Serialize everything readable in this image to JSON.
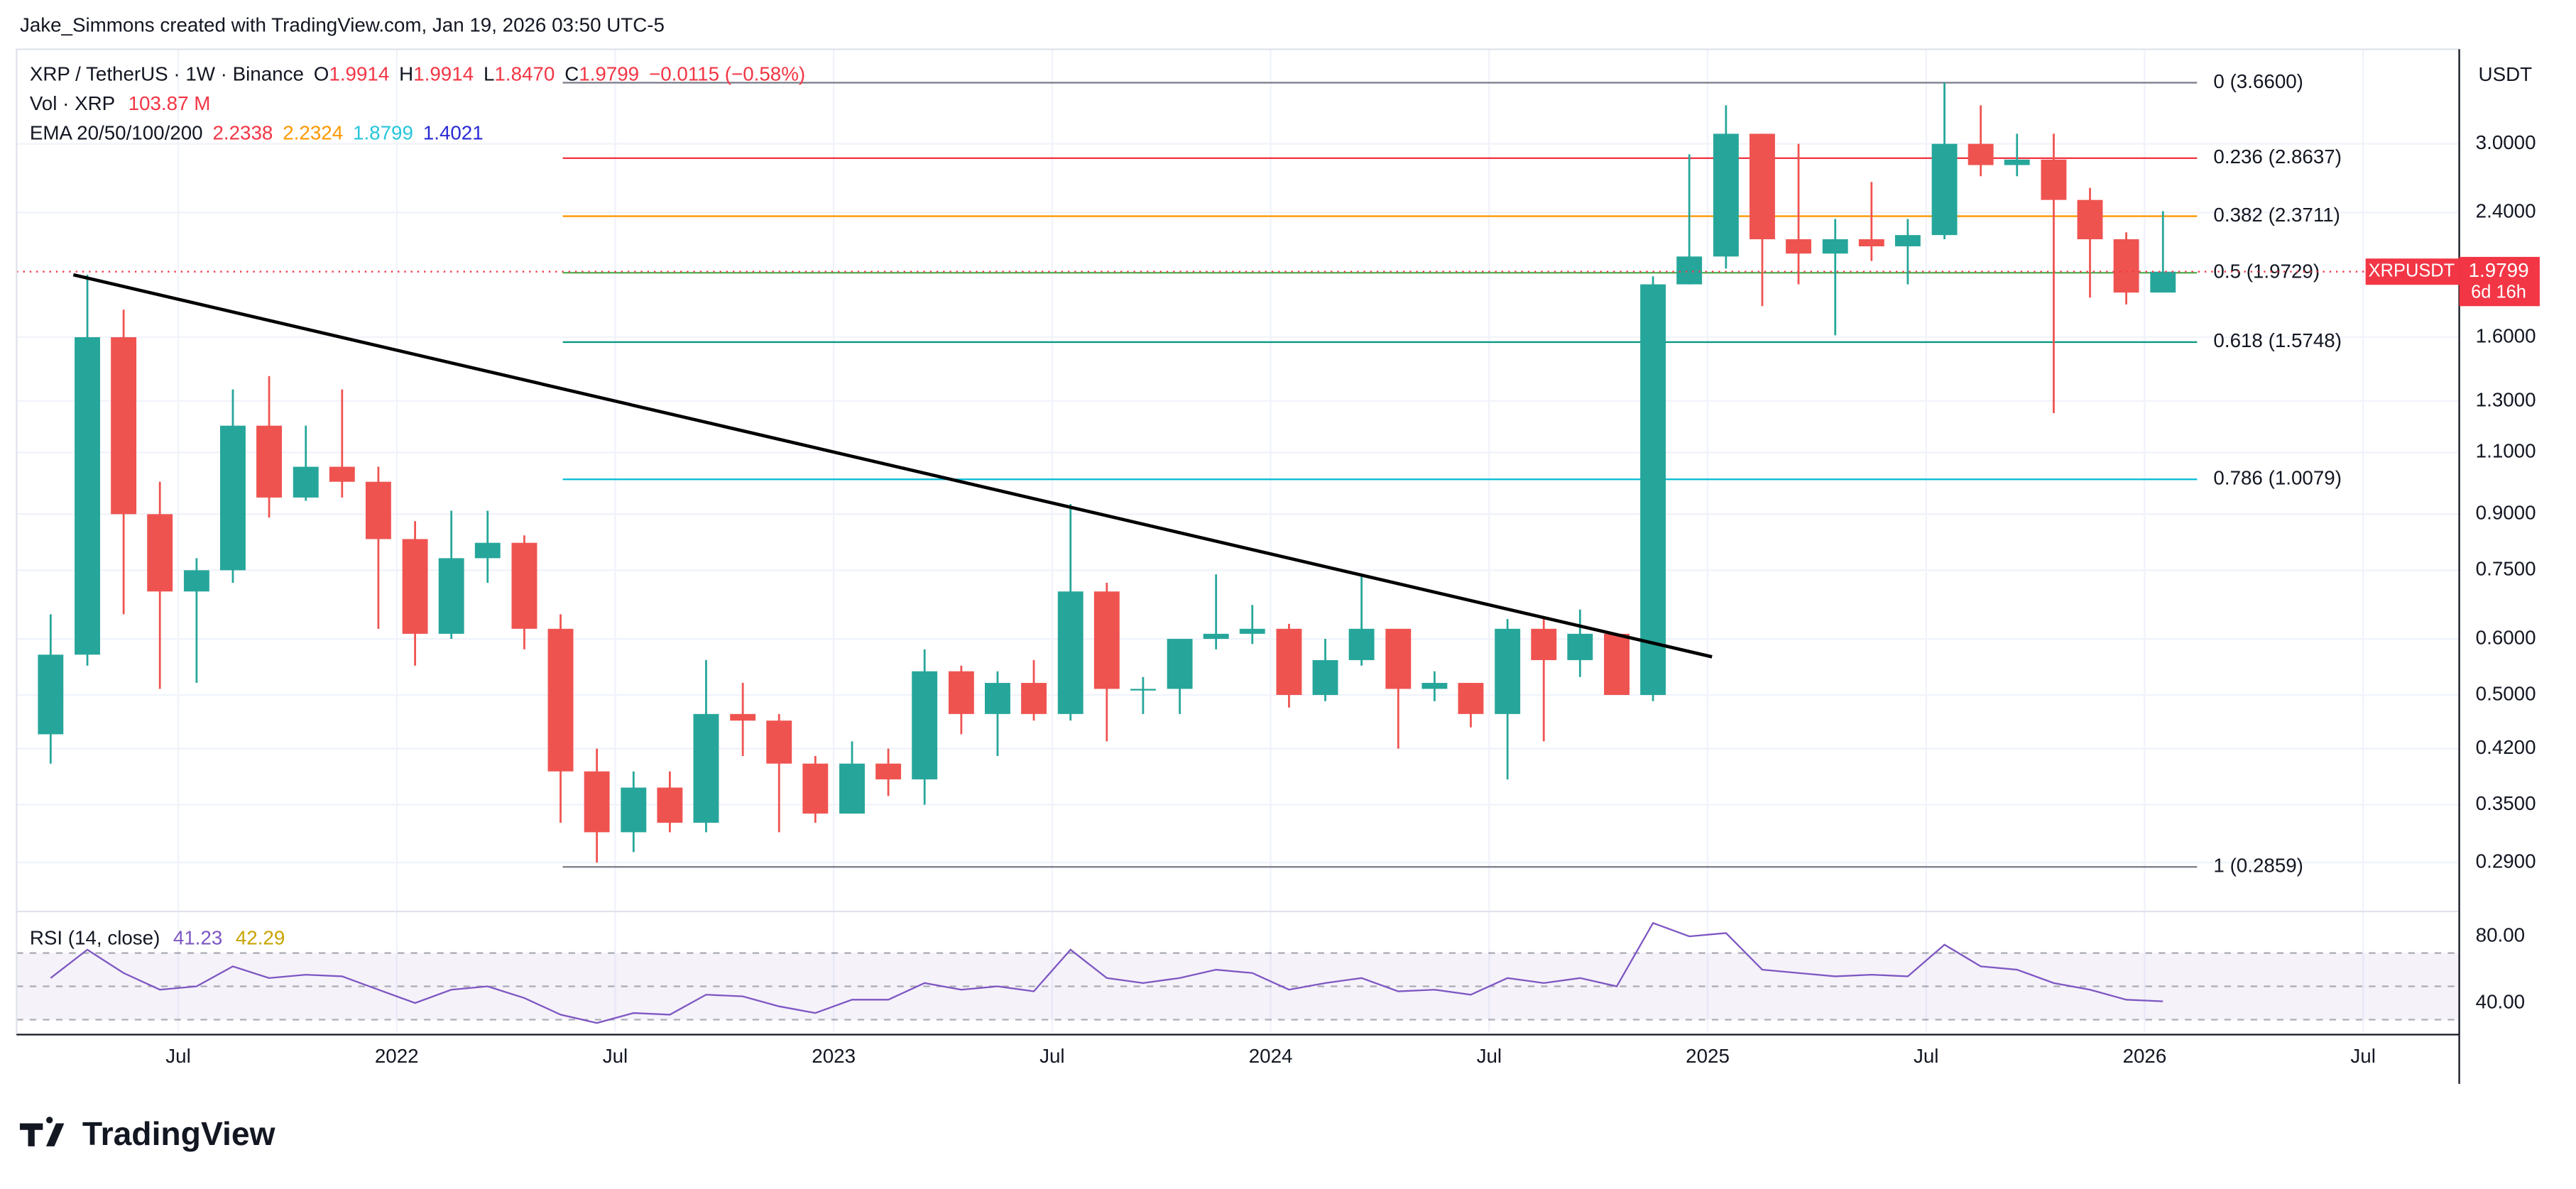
{
  "header": {
    "attribution": "Jake_Simmons created with TradingView.com, Jan 19, 2026 03:50 UTC-5"
  },
  "chart_data": {
    "type": "candlestick",
    "title": "XRP / TetherUS · 1W · Binance",
    "ohlc_keys": [
      "O",
      "H",
      "L",
      "C"
    ],
    "ohlc_labels": [
      "1.9914",
      "1.9914",
      "1.8470",
      "1.9799"
    ],
    "change_label": "−0.0115 (−0.58%)",
    "volume_title": "Vol · XRP",
    "volume_label": "103.87 M",
    "ema_title": "EMA 20/50/100/200",
    "ema": [
      {
        "value": 2.2338,
        "color": "#f23645"
      },
      {
        "value": 2.2324,
        "color": "#ff9800"
      },
      {
        "value": 1.8799,
        "color": "#26c6da"
      },
      {
        "value": 1.4021,
        "color": "#2a2ad6"
      }
    ],
    "currency": "USDT",
    "up_color": "#26a69a",
    "down_color": "#ef5350",
    "x": [
      2021.208,
      2021.292,
      2021.375,
      2021.458,
      2021.542,
      2021.625,
      2021.708,
      2021.792,
      2021.875,
      2021.958,
      2022.042,
      2022.125,
      2022.208,
      2022.292,
      2022.375,
      2022.458,
      2022.542,
      2022.625,
      2022.708,
      2022.792,
      2022.875,
      2022.958,
      2023.042,
      2023.125,
      2023.208,
      2023.292,
      2023.375,
      2023.458,
      2023.542,
      2023.625,
      2023.708,
      2023.792,
      2023.875,
      2023.958,
      2024.042,
      2024.125,
      2024.208,
      2024.292,
      2024.375,
      2024.458,
      2024.542,
      2024.625,
      2024.708,
      2024.792,
      2024.875,
      2024.958,
      2025.042,
      2025.125,
      2025.208,
      2025.292,
      2025.375,
      2025.458,
      2025.542,
      2025.625,
      2025.708,
      2025.792,
      2025.875,
      2025.958,
      2026.042
    ],
    "open": [
      0.44,
      0.57,
      1.6,
      0.9,
      0.7,
      0.75,
      1.2,
      0.95,
      1.05,
      1.0,
      0.83,
      0.61,
      0.78,
      0.82,
      0.62,
      0.39,
      0.32,
      0.37,
      0.33,
      0.47,
      0.46,
      0.4,
      0.34,
      0.4,
      0.38,
      0.54,
      0.47,
      0.52,
      0.47,
      0.7,
      0.51,
      0.51,
      0.6,
      0.61,
      0.62,
      0.5,
      0.56,
      0.62,
      0.51,
      0.52,
      0.47,
      0.62,
      0.56,
      0.61,
      0.5,
      1.9,
      2.08,
      3.1,
      2.2,
      2.1,
      2.2,
      2.15,
      2.23,
      3.0,
      2.8,
      2.85,
      2.5,
      2.2,
      1.85
    ],
    "high": [
      0.65,
      1.96,
      1.75,
      1.0,
      0.78,
      1.35,
      1.41,
      1.2,
      1.35,
      1.05,
      0.88,
      0.91,
      0.91,
      0.84,
      0.65,
      0.42,
      0.39,
      0.39,
      0.56,
      0.52,
      0.47,
      0.41,
      0.43,
      0.42,
      0.58,
      0.55,
      0.54,
      0.56,
      0.93,
      0.72,
      0.53,
      0.58,
      0.74,
      0.67,
      0.63,
      0.6,
      0.74,
      0.62,
      0.54,
      0.52,
      0.64,
      0.64,
      0.66,
      0.61,
      1.95,
      2.9,
      3.4,
      3.1,
      3.0,
      2.35,
      2.65,
      2.35,
      3.66,
      3.4,
      3.1,
      3.1,
      2.6,
      2.25,
      2.41
    ],
    "low": [
      0.4,
      0.55,
      0.65,
      0.51,
      0.52,
      0.72,
      0.89,
      0.94,
      0.95,
      0.62,
      0.55,
      0.6,
      0.72,
      0.58,
      0.33,
      0.29,
      0.3,
      0.32,
      0.32,
      0.41,
      0.32,
      0.33,
      0.34,
      0.36,
      0.35,
      0.44,
      0.41,
      0.46,
      0.46,
      0.43,
      0.47,
      0.47,
      0.58,
      0.59,
      0.48,
      0.49,
      0.55,
      0.42,
      0.49,
      0.45,
      0.38,
      0.43,
      0.53,
      0.5,
      0.49,
      1.9,
      2.0,
      1.77,
      1.9,
      1.61,
      2.05,
      1.9,
      2.2,
      2.7,
      2.7,
      1.25,
      1.82,
      1.78,
      1.85
    ],
    "close": [
      0.57,
      1.6,
      0.9,
      0.7,
      0.75,
      1.2,
      0.95,
      1.05,
      1.0,
      0.83,
      0.61,
      0.78,
      0.82,
      0.62,
      0.39,
      0.32,
      0.37,
      0.33,
      0.47,
      0.46,
      0.4,
      0.34,
      0.4,
      0.38,
      0.54,
      0.47,
      0.52,
      0.47,
      0.7,
      0.51,
      0.51,
      0.6,
      0.61,
      0.62,
      0.5,
      0.56,
      0.62,
      0.51,
      0.52,
      0.47,
      0.62,
      0.56,
      0.61,
      0.5,
      1.9,
      2.08,
      3.1,
      2.2,
      2.1,
      2.2,
      2.15,
      2.23,
      3.0,
      2.8,
      2.85,
      2.5,
      2.2,
      1.85,
      1.9799
    ],
    "log_scale": true,
    "grid": true,
    "xlim": [
      2021.13,
      2026.72
    ],
    "xticks": [
      {
        "value": 2021.5,
        "label": "Jul"
      },
      {
        "value": 2022,
        "label": "2022"
      },
      {
        "value": 2022.5,
        "label": "Jul"
      },
      {
        "value": 2023,
        "label": "2023"
      },
      {
        "value": 2023.5,
        "label": "Jul"
      },
      {
        "value": 2024,
        "label": "2024"
      },
      {
        "value": 2024.5,
        "label": "Jul"
      },
      {
        "value": 2025,
        "label": "2025"
      },
      {
        "value": 2025.5,
        "label": "Jul"
      },
      {
        "value": 2026,
        "label": "2026"
      },
      {
        "value": 2026.5,
        "label": "Jul"
      }
    ],
    "ylim": [
      0.25,
      4.08
    ],
    "yticks": [
      {
        "value": 3,
        "label": "3.0000"
      },
      {
        "value": 2.4,
        "label": "2.4000"
      },
      {
        "value": 1.6,
        "label": "1.6000"
      },
      {
        "value": 1.3,
        "label": "1.3000"
      },
      {
        "value": 1.1,
        "label": "1.1000"
      },
      {
        "value": 0.9,
        "label": "0.9000"
      },
      {
        "value": 0.75,
        "label": "0.7500"
      },
      {
        "value": 0.6,
        "label": "0.6000"
      },
      {
        "value": 0.5,
        "label": "0.5000"
      },
      {
        "value": 0.42,
        "label": "0.4200"
      },
      {
        "value": 0.35,
        "label": "0.3500"
      },
      {
        "value": 0.29,
        "label": "0.2900"
      }
    ],
    "last_price": {
      "symbol": "XRPUSDT",
      "value": 1.9799,
      "countdown": "6d 16h",
      "color": "#f23645"
    },
    "fib_x": [
      2022.38,
      2026.12
    ],
    "fib": [
      {
        "price": 3.66,
        "label": "0 (3.6600)",
        "color": "#787b86"
      },
      {
        "price": 2.8637,
        "label": "0.236 (2.8637)",
        "color": "#f23645"
      },
      {
        "price": 2.3711,
        "label": "0.382 (2.3711)",
        "color": "#ff9800"
      },
      {
        "price": 1.9729,
        "label": "0.5 (1.9729)",
        "color": "#4caf50"
      },
      {
        "price": 1.5748,
        "label": "0.618 (1.5748)",
        "color": "#089981"
      },
      {
        "price": 1.0079,
        "label": "0.786 (1.0079)",
        "color": "#00bcd4"
      },
      {
        "price": 0.2859,
        "label": "1 (0.2859)",
        "color": "#787b86"
      }
    ],
    "trendline": {
      "x": [
        2021.26,
        2025.01
      ],
      "y": [
        1.96,
        0.566
      ],
      "color": "#000000"
    },
    "rsi": {
      "title": "RSI (14, close)",
      "legend": [
        41.23,
        42.29
      ],
      "color": "#7e57c2",
      "ma_color": "#f7c600",
      "values": [
        55,
        72,
        58,
        48,
        50,
        62,
        55,
        57,
        56,
        48,
        40,
        48,
        50,
        43,
        33,
        28,
        34,
        33,
        45,
        44,
        38,
        34,
        42,
        42,
        52,
        48,
        50,
        47,
        72,
        55,
        52,
        55,
        60,
        58,
        48,
        52,
        55,
        47,
        48,
        45,
        55,
        52,
        55,
        50,
        88,
        80,
        82,
        60,
        58,
        56,
        57,
        56,
        75,
        62,
        60,
        52,
        48,
        42,
        41
      ],
      "ylim": [
        23,
        92
      ],
      "yticks": [
        {
          "value": 80,
          "label": "80.00"
        },
        {
          "value": 40,
          "label": "40.00"
        }
      ],
      "bands": [
        70,
        50,
        30
      ]
    }
  },
  "footer": {
    "logo": "TradingView"
  }
}
